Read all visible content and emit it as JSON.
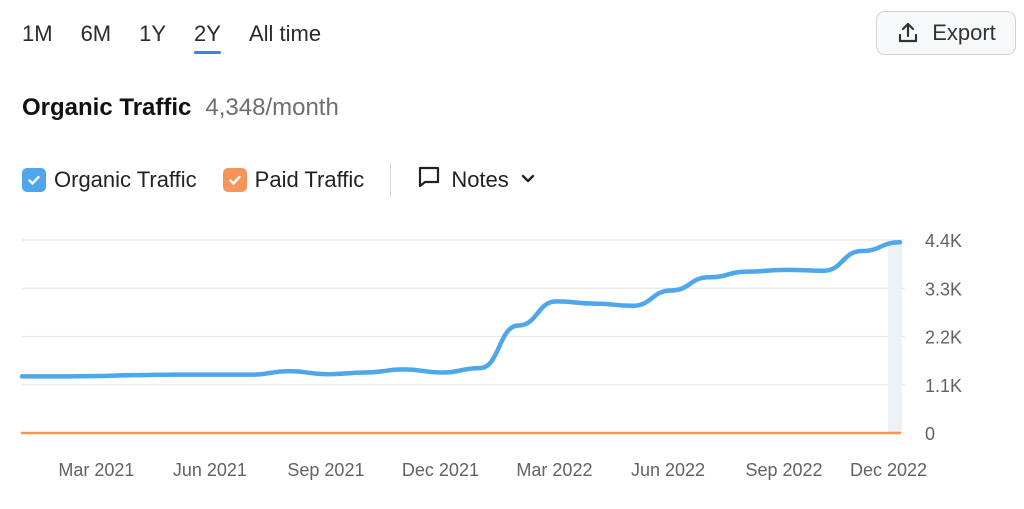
{
  "ranges": [
    {
      "label": "1M",
      "active": false
    },
    {
      "label": "6M",
      "active": false
    },
    {
      "label": "1Y",
      "active": false
    },
    {
      "label": "2Y",
      "active": true
    },
    {
      "label": "All time",
      "active": false
    }
  ],
  "export_label": "Export",
  "title": "Organic Traffic",
  "subtitle": "4,348/month",
  "legend": {
    "organic_label": "Organic Traffic",
    "paid_label": "Paid Traffic",
    "notes_label": "Notes"
  },
  "colors": {
    "organic": "#4da7ea",
    "paid": "#f5955a",
    "accent": "#2f8ae5"
  },
  "chart_data": {
    "type": "line",
    "x_tick_labels": [
      "Mar 2021",
      "Jun 2021",
      "Sep 2021",
      "Dec 2021",
      "Mar 2022",
      "Jun 2022",
      "Sep 2022",
      "Dec 2022"
    ],
    "y_tick_labels": [
      "4.4K",
      "3.3K",
      "2.2K",
      "1.1K",
      "0"
    ],
    "ylim": [
      0,
      4400
    ],
    "x_range": [
      "2021-01",
      "2022-12"
    ],
    "grid": true,
    "series": [
      {
        "name": "Organic Traffic",
        "color": "#4da7ea",
        "points": [
          [
            "2021-01",
            1290
          ],
          [
            "2021-02",
            1290
          ],
          [
            "2021-03",
            1300
          ],
          [
            "2021-04",
            1320
          ],
          [
            "2021-05",
            1330
          ],
          [
            "2021-06",
            1330
          ],
          [
            "2021-07",
            1330
          ],
          [
            "2021-08",
            1410
          ],
          [
            "2021-09",
            1340
          ],
          [
            "2021-10",
            1380
          ],
          [
            "2021-11",
            1450
          ],
          [
            "2021-12",
            1380
          ],
          [
            "2022-01",
            1480
          ],
          [
            "2022-02",
            2450
          ],
          [
            "2022-03",
            3000
          ],
          [
            "2022-04",
            2950
          ],
          [
            "2022-05",
            2900
          ],
          [
            "2022-06",
            3250
          ],
          [
            "2022-07",
            3550
          ],
          [
            "2022-08",
            3680
          ],
          [
            "2022-09",
            3720
          ],
          [
            "2022-10",
            3700
          ],
          [
            "2022-11",
            4150
          ],
          [
            "2022-12",
            4348
          ]
        ]
      },
      {
        "name": "Paid Traffic",
        "color": "#f5955a",
        "points": [
          [
            "2021-01",
            0
          ],
          [
            "2022-12",
            0
          ]
        ]
      }
    ]
  }
}
